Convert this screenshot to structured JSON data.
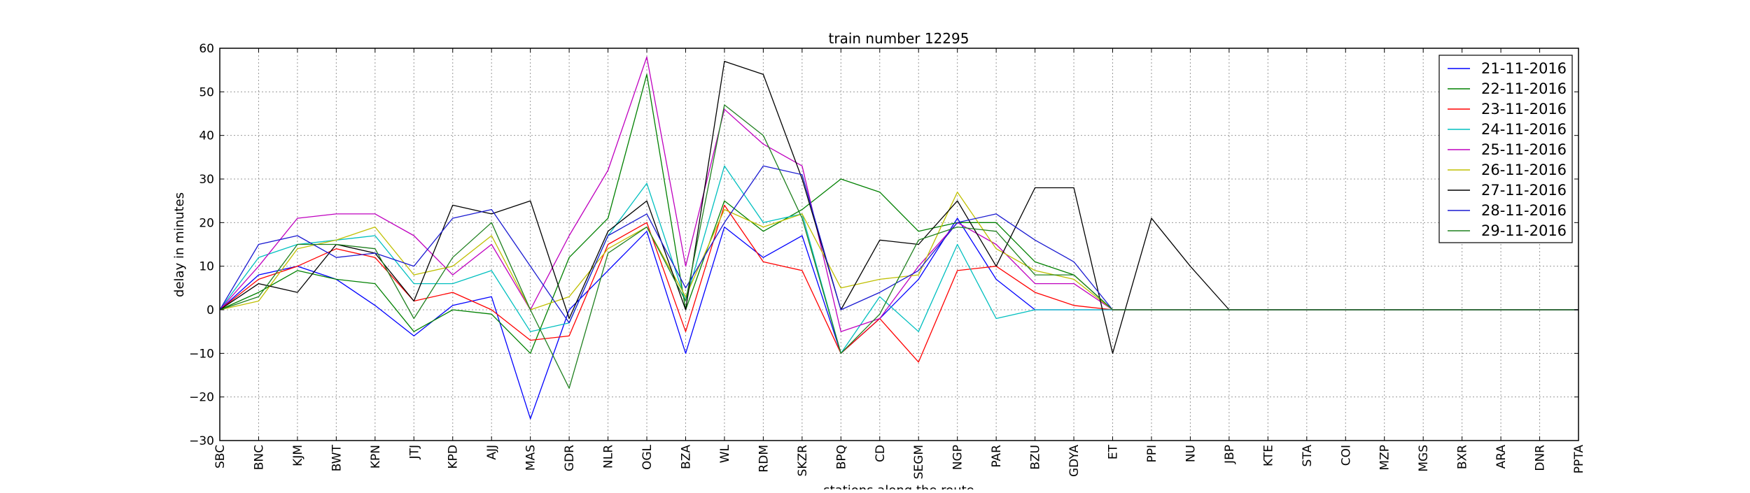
{
  "chart_data": {
    "type": "line",
    "title": "train number 12295",
    "xlabel": "stations along the route",
    "ylabel": "delay in minutes",
    "ylim": [
      -30,
      60
    ],
    "yticks": [
      "60",
      "50",
      "40",
      "30",
      "20",
      "10",
      "0",
      "−10",
      "−20",
      "−30"
    ],
    "grid": true,
    "legend_position": "top-right",
    "categories": [
      "SBC",
      "BNC",
      "KJM",
      "BWT",
      "KPN",
      "JTJ",
      "KPD",
      "AJJ",
      "MAS",
      "GDR",
      "NLR",
      "OGL",
      "BZA",
      "WL",
      "RDM",
      "SKZR",
      "BPQ",
      "CD",
      "SEGM",
      "NGP",
      "PAR",
      "BZU",
      "GDYA",
      "ET",
      "PPI",
      "NU",
      "JBP",
      "KTE",
      "STA",
      "COI",
      "MZP",
      "MGS",
      "BXR",
      "ARA",
      "DNR",
      "PPTA"
    ],
    "series": [
      {
        "name": "21-11-2016",
        "color": "#0000ff",
        "values": [
          0,
          8,
          10,
          7,
          1,
          -6,
          1,
          3,
          -25,
          0,
          9,
          18,
          -10,
          19,
          12,
          17,
          -10,
          -2,
          7,
          21,
          7,
          0,
          0,
          0,
          0,
          0,
          0,
          0,
          0,
          0,
          0,
          0,
          0,
          0,
          0,
          0
        ]
      },
      {
        "name": "22-11-2016",
        "color": "#008000",
        "values": [
          0,
          4,
          9,
          7,
          6,
          -5,
          0,
          -1,
          -10,
          12,
          21,
          54,
          0,
          25,
          18,
          23,
          30,
          27,
          18,
          20,
          20,
          11,
          8,
          0,
          0,
          0,
          0,
          0,
          0,
          0,
          0,
          0,
          0,
          0,
          0,
          0
        ]
      },
      {
        "name": "23-11-2016",
        "color": "#ff0000",
        "values": [
          0,
          7,
          10,
          14,
          12,
          2,
          4,
          0,
          -7,
          -6,
          15,
          20,
          -5,
          24,
          11,
          9,
          -10,
          -2,
          -12,
          9,
          10,
          4,
          1,
          0,
          0,
          0,
          0,
          0,
          0,
          0,
          0,
          0,
          0,
          0,
          0,
          0
        ]
      },
      {
        "name": "24-11-2016",
        "color": "#00bfbf",
        "values": [
          0,
          12,
          15,
          16,
          17,
          6,
          6,
          9,
          -5,
          -3,
          17,
          29,
          2,
          33,
          20,
          22,
          -10,
          3,
          -5,
          15,
          -2,
          0,
          0,
          0,
          0,
          0,
          0,
          0,
          0,
          0,
          0,
          0,
          0,
          0,
          0,
          0
        ]
      },
      {
        "name": "25-11-2016",
        "color": "#bf00bf",
        "values": [
          0,
          10,
          21,
          22,
          22,
          17,
          8,
          15,
          0,
          17,
          32,
          58,
          10,
          46,
          38,
          33,
          -5,
          -2,
          10,
          20,
          15,
          6,
          6,
          0,
          0,
          0,
          0,
          0,
          0,
          0,
          0,
          0,
          0,
          0,
          0,
          0
        ]
      },
      {
        "name": "26-11-2016",
        "color": "#bfbf00",
        "values": [
          0,
          2,
          14,
          16,
          19,
          8,
          10,
          17,
          0,
          3,
          14,
          19,
          3,
          23,
          19,
          22,
          5,
          7,
          8,
          27,
          14,
          9,
          7,
          0,
          0,
          0,
          0,
          0,
          0,
          0,
          0,
          0,
          0,
          0,
          0,
          0
        ]
      },
      {
        "name": "27-11-2016",
        "color": "#000000",
        "values": [
          0,
          6,
          4,
          15,
          13,
          2,
          24,
          22,
          25,
          -2,
          18,
          25,
          0,
          57,
          54,
          30,
          0,
          16,
          15,
          25,
          10,
          28,
          28,
          -10,
          21,
          10,
          0,
          0,
          0,
          0,
          0,
          0,
          0,
          0,
          0,
          0
        ]
      },
      {
        "name": "28-11-2016",
        "color": "#1a1ad1",
        "values": [
          0,
          15,
          17,
          12,
          13,
          10,
          21,
          23,
          10,
          -3,
          17,
          22,
          5,
          20,
          33,
          31,
          0,
          4,
          9,
          20,
          22,
          16,
          11,
          0,
          0,
          0,
          0,
          0,
          0,
          0,
          0,
          0,
          0,
          0,
          0,
          0
        ]
      },
      {
        "name": "29-11-2016",
        "color": "#1f801f",
        "values": [
          0,
          3,
          15,
          15,
          14,
          -2,
          12,
          20,
          0,
          -18,
          13,
          19,
          2,
          47,
          40,
          21,
          -10,
          -1,
          16,
          19,
          18,
          8,
          8,
          0,
          0,
          0,
          0,
          0,
          0,
          0,
          0,
          0,
          0,
          0,
          0,
          0
        ]
      }
    ]
  }
}
